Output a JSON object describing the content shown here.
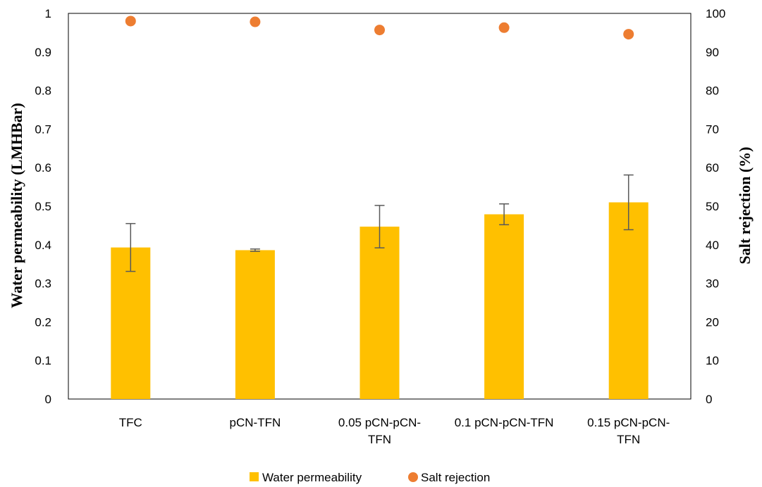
{
  "chart_data": {
    "type": "bar",
    "categories": [
      [
        "TFC"
      ],
      [
        "pCN-TFN"
      ],
      [
        "0.05 pCN-pCN-",
        "TFN"
      ],
      [
        "0.1 pCN-pCN-TFN"
      ],
      [
        "0.15 pCN-pCN-",
        "TFN"
      ]
    ],
    "series": [
      {
        "name": "Water permeability",
        "type": "bar",
        "axis": "left",
        "color": "#FFC000",
        "values": [
          0.393,
          0.386,
          0.447,
          0.479,
          0.51
        ],
        "error": [
          0.062,
          0.003,
          0.055,
          0.027,
          0.071
        ]
      },
      {
        "name": "Salt rejection",
        "type": "scatter",
        "axis": "right",
        "color": "#ED7D31",
        "values": [
          98.0,
          97.8,
          95.7,
          96.3,
          94.6
        ]
      }
    ],
    "ylabel": "Water permeability (LMHBar)",
    "y2label": "Salt rejection (%)",
    "ylim": [
      0,
      1
    ],
    "y2lim": [
      0,
      100
    ],
    "yticks": [
      "0",
      "0.1",
      "0.2",
      "0.3",
      "0.4",
      "0.5",
      "0.6",
      "0.7",
      "0.8",
      "0.9",
      "1"
    ],
    "y2ticks": [
      "0",
      "10",
      "20",
      "30",
      "40",
      "50",
      "60",
      "70",
      "80",
      "90",
      "100"
    ],
    "grid": false,
    "legend": "bottom"
  }
}
